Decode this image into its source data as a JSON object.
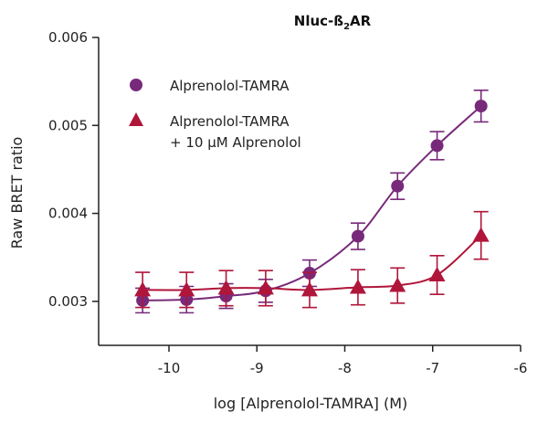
{
  "colors": {
    "purple": "#782a7a",
    "crimson": "#b0153a",
    "axis": "#222222"
  },
  "chart_data": {
    "type": "scatter",
    "title_main": "Nluc-ß",
    "title_sub": "2",
    "title_tail": "AR",
    "xlabel": "log [Alprenolol-TAMRA] (M)",
    "ylabel": "Raw BRET ratio",
    "xlim": [
      -10.8,
      -6
    ],
    "ylim": [
      0.0025,
      0.006
    ],
    "xticks": [
      -10,
      -9,
      -8,
      -7,
      -6
    ],
    "xtick_labels": [
      "-10",
      "-9",
      "-8",
      "-7",
      "-6"
    ],
    "yticks": [
      0.003,
      0.004,
      0.005,
      0.006
    ],
    "ytick_labels": [
      "0.003",
      "0.004",
      "0.005",
      "0.006"
    ],
    "grid": false,
    "legend_position": "top-left",
    "series": [
      {
        "name": "Alprenolol-TAMRA",
        "name_line2": "",
        "marker": "circle",
        "color": "#782a7a",
        "x": [
          -10.3,
          -9.8,
          -9.35,
          -8.9,
          -8.4,
          -7.85,
          -7.4,
          -6.95,
          -6.45
        ],
        "y": [
          0.00301,
          0.00302,
          0.00306,
          0.00312,
          0.00332,
          0.00374,
          0.00431,
          0.00477,
          0.00522
        ],
        "err": [
          0.00014,
          0.00015,
          0.00014,
          0.00013,
          0.00015,
          0.00015,
          0.00015,
          0.00016,
          0.00018
        ]
      },
      {
        "name": "Alprenolol-TAMRA",
        "name_line2": "+ 10 µM Alprenolol",
        "marker": "triangle",
        "color": "#b0153a",
        "x": [
          -10.3,
          -9.8,
          -9.35,
          -8.9,
          -8.4,
          -7.85,
          -7.4,
          -6.95,
          -6.45
        ],
        "y": [
          0.00313,
          0.00313,
          0.00315,
          0.00315,
          0.00313,
          0.00316,
          0.00318,
          0.0033,
          0.00375
        ],
        "err": [
          0.0002,
          0.0002,
          0.0002,
          0.0002,
          0.0002,
          0.0002,
          0.0002,
          0.00022,
          0.00027
        ]
      }
    ]
  }
}
